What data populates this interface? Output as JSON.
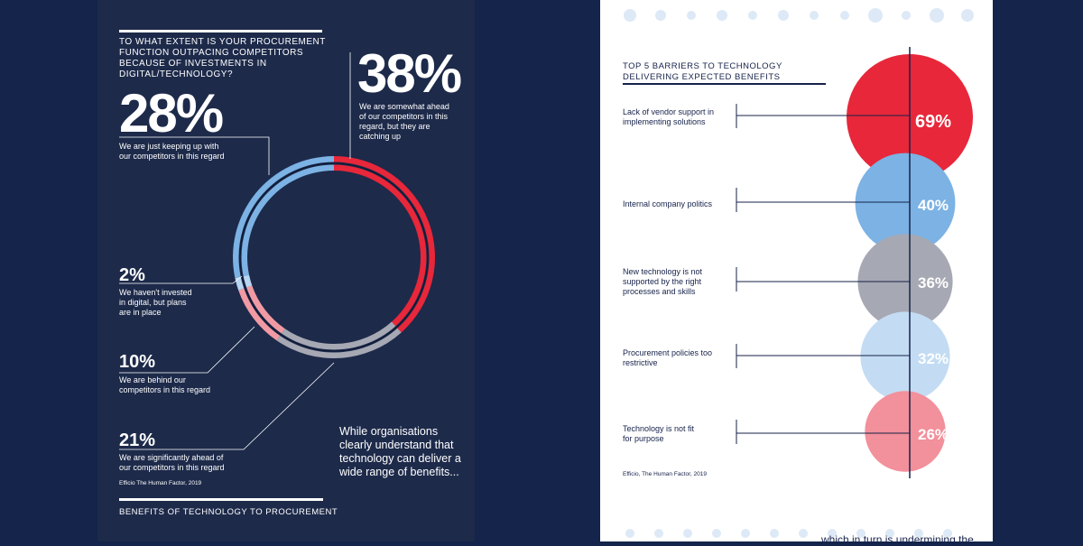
{
  "left": {
    "question": "TO WHAT EXTENT IS YOUR PROCUREMENT FUNCTION OUTPACING COMPETITORS BECAUSE OF INVESTMENTS IN DIGITAL/TECHNOLOGY?",
    "quote": "While organisations clearly understand that technology can deliver a wide range of benefits...",
    "source": "Efficio The Human Factor, 2019",
    "footer": "BENEFITS OF TECHNOLOGY TO PROCUREMENT"
  },
  "right": {
    "title": "TOP 5  BARRIERS TO TECHNOLOGY DELIVERING EXPECTED BENEFITS",
    "source": "Efficio, The Human Factor, 2019",
    "bottom_text": "...which in turn is undermining the"
  },
  "chart_data": [
    {
      "type": "pie",
      "title": "TO WHAT EXTENT IS YOUR PROCUREMENT FUNCTION OUTPACING COMPETITORS BECAUSE OF INVESTMENTS IN DIGITAL/TECHNOLOGY?",
      "slices": [
        {
          "label": "We are somewhat ahead of our competitors in this regard, but they are catching up",
          "value": 38,
          "display": "38%",
          "color": "#e8273a"
        },
        {
          "label": "We are significantly ahead of our competitors in this regard",
          "value": 21,
          "display": "21%",
          "color": "#a6a8b3"
        },
        {
          "label": "We are behind our competitors in this regard",
          "value": 10,
          "display": "10%",
          "color": "#f29aa3"
        },
        {
          "label": "We haven't invested in digital, but plans are in place",
          "value": 2,
          "display": "2%",
          "color": "#b8d6f1"
        },
        {
          "label": "We are just keeping up with our competitors in this regard",
          "value": 28,
          "display": "28%",
          "color": "#7cb2e4"
        }
      ]
    },
    {
      "type": "bar",
      "title": "TOP 5  BARRIERS TO TECHNOLOGY DELIVERING EXPECTED BENEFITS",
      "categories": [
        "Lack of vendor support in implementing solutions",
        "Internal company politics",
        "New technology is not supported by the right processes and skills",
        "Procurement policies too restrictive",
        "Technology is not fit for purpose"
      ],
      "values": [
        69,
        40,
        36,
        32,
        26
      ],
      "labels": [
        "69%",
        "40%",
        "36%",
        "32%",
        "26%"
      ],
      "colors": [
        "#e8273a",
        "#7cb2e4",
        "#a6a8b3",
        "#c3dcf3",
        "#f2909b"
      ]
    }
  ]
}
